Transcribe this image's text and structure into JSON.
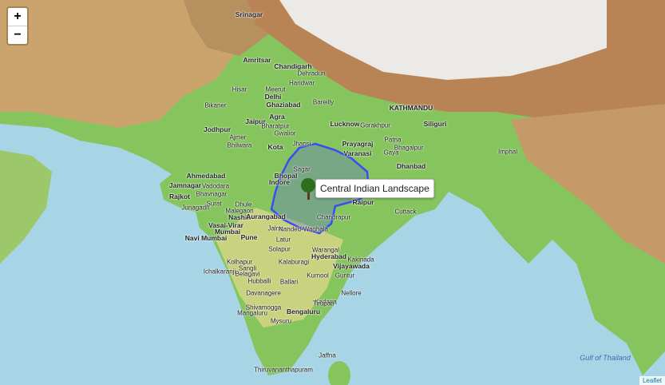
{
  "controls": {
    "zoom_in": "+",
    "zoom_out": "−"
  },
  "popup": {
    "label": "Central Indian Landscape"
  },
  "places": [
    "Srinagar",
    "KATHMANDU",
    "Amritsar",
    "Chandigarh",
    "Dehradun",
    "Haridwar",
    "Hisar",
    "Meerut",
    "Ghaziabad",
    "Delhi",
    "Bareilly",
    "Bikaner",
    "Jaipur",
    "Agra",
    "Bharatpur",
    "Gwalior",
    "Jodhpur",
    "Ajmer",
    "Bhilwara",
    "Kota",
    "Jhansi",
    "Lucknow",
    "Gorakhpur",
    "Siliguri",
    "Prayagraj",
    "Varanasi",
    "Patna",
    "Bhagalpur",
    "Gaya",
    "Dhanbad",
    "Imphal",
    "Ahmedabad",
    "Vadodara",
    "Indore",
    "Sagar",
    "Bhopal",
    "Raipur",
    "Jamnagar",
    "Rajkot",
    "Bhavnagar",
    "Junagadh",
    "Surat",
    "Dhule",
    "Malegaon",
    "Nashik",
    "Aurangabad",
    "Chandrapur",
    "Cuttack",
    "Vasai-Virar",
    "Mumbai",
    "Navi Mumbai",
    "Pune",
    "Jalna",
    "Nanded-Waghala",
    "Latur",
    "Solapur",
    "Warangal",
    "Hyderabad",
    "Kakinada",
    "Vijayawada",
    "Kolhapur",
    "Sangli",
    "Kalaburagi",
    "Ichalkaranji",
    "Belagavi",
    "Hubballi",
    "Ballari",
    "Kurnool",
    "Guntur",
    "Nellore",
    "Davanagere",
    "Kadapa",
    "Tirupati",
    "Shivamogga",
    "Mangaluru",
    "Bengaluru",
    "Mysuru",
    "Jaffna",
    "Thiruvananthapuram",
    "Gulf of Thailand"
  ],
  "attribution": "Leaflet"
}
